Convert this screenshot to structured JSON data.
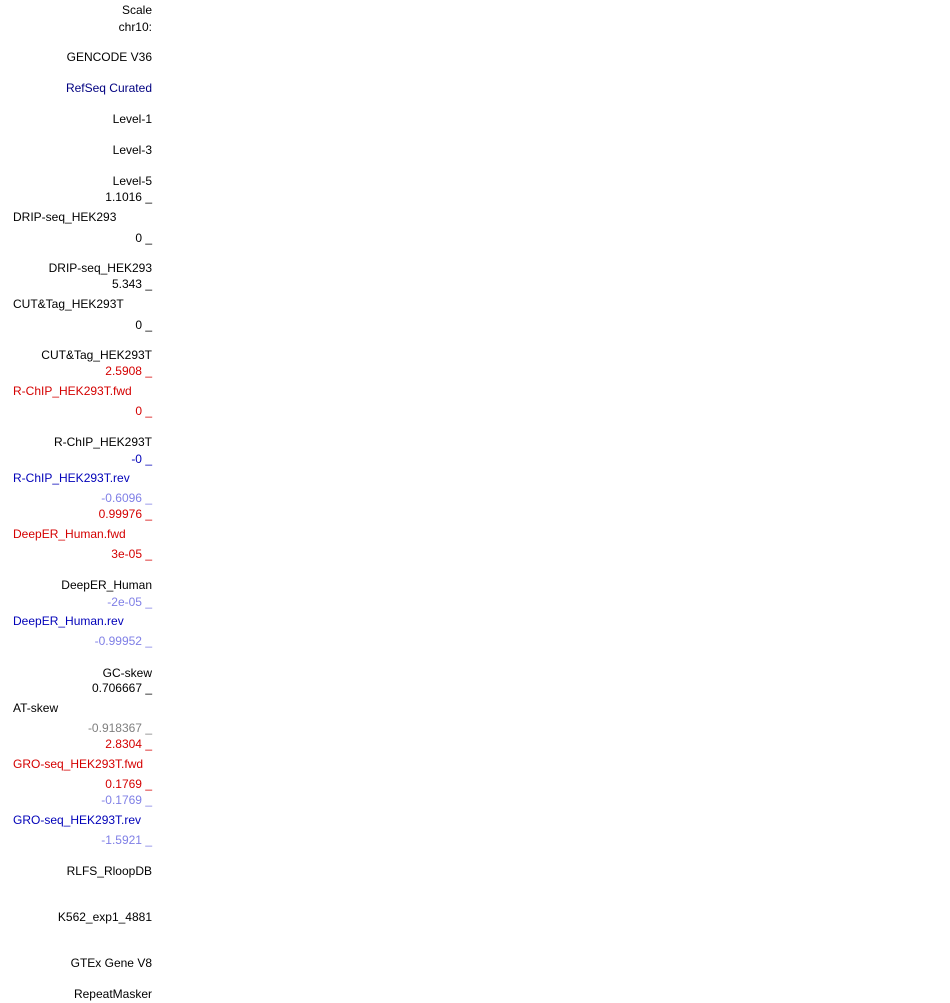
{
  "colors": {
    "default_text": "#000000",
    "forward_strand": "#d40000",
    "reverse_strand": "#0000b8",
    "refseq": "#000080",
    "negative_scale": "#7f7fe6",
    "muted_scale": "#7f7f7f"
  },
  "header": {
    "scale": "Scale",
    "chrom": "chr10:"
  },
  "tracks": {
    "gencode": "GENCODE V36",
    "refseq": "RefSeq Curated",
    "level1": "Level-1",
    "level3": "Level-3",
    "level5": "Level-5",
    "drip": {
      "max": "1.1016 _",
      "title": "DRIP-seq_HEK293",
      "min": "0 _",
      "short": "DRIP-seq_HEK293"
    },
    "cuttag": {
      "max": "5.343 _",
      "title": "CUT&Tag_HEK293T",
      "min": "0 _",
      "short": "CUT&Tag_HEK293T"
    },
    "rchip": {
      "fwd_max": "2.5908 _",
      "fwd_title": "R-ChIP_HEK293T.fwd",
      "fwd_min": "0 _",
      "short": "R-ChIP_HEK293T",
      "rev_max": "-0 _",
      "rev_title": "R-ChIP_HEK293T.rev",
      "rev_min": "-0.6096 _"
    },
    "deeper": {
      "fwd_max": "0.99976 _",
      "fwd_title": "DeepER_Human.fwd",
      "fwd_min": "3e-05 _",
      "short": "DeepER_Human",
      "rev_max": "-2e-05 _",
      "rev_title": "DeepER_Human.rev",
      "rev_min": "-0.99952 _"
    },
    "gcskew": "GC-skew",
    "atskew": {
      "max": "0.706667 _",
      "title": "AT-skew",
      "min": "-0.918367 _"
    },
    "groseq": {
      "fwd_max": "2.8304 _",
      "fwd_title": "GRO-seq_HEK293T.fwd",
      "fwd_min": "0.1769 _",
      "rev_max": "-0.1769 _",
      "rev_title": "GRO-seq_HEK293T.rev",
      "rev_min": "-1.5921 _"
    },
    "rlfs": "RLFS_RloopDB",
    "k562": "K562_exp1_4881",
    "gtex": "GTEx Gene V8",
    "repeatmasker": "RepeatMasker"
  }
}
